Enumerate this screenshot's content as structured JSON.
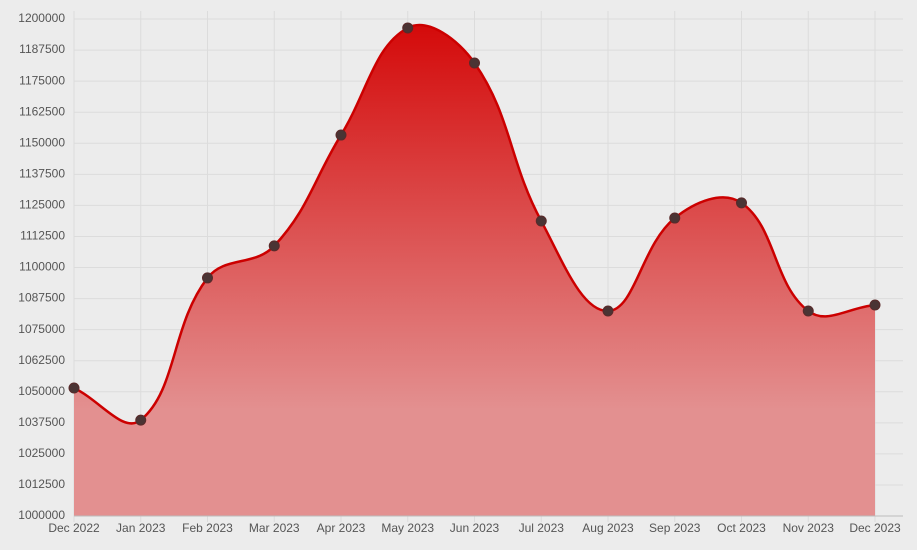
{
  "chart_data": {
    "type": "area",
    "categories": [
      "Dec 2022",
      "Jan 2023",
      "Feb 2023",
      "Mar 2023",
      "Apr 2023",
      "May 2023",
      "Jun 2023",
      "Jul 2023",
      "Aug 2023",
      "Sep 2023",
      "Oct 2023",
      "Nov 2023",
      "Dec 2023"
    ],
    "values": [
      1051500,
      1038600,
      1095800,
      1108700,
      1153300,
      1196400,
      1182300,
      1118700,
      1082500,
      1119900,
      1126000,
      1082500,
      1084900
    ],
    "color": "#cc0000",
    "ylim": [
      1000000,
      1200000
    ],
    "yticks": [
      1000000,
      1012500,
      1025000,
      1037500,
      1050000,
      1062500,
      1075000,
      1087500,
      1100000,
      1112500,
      1125000,
      1137500,
      1150000,
      1162500,
      1175000,
      1187500,
      1200000
    ],
    "grid": true
  }
}
